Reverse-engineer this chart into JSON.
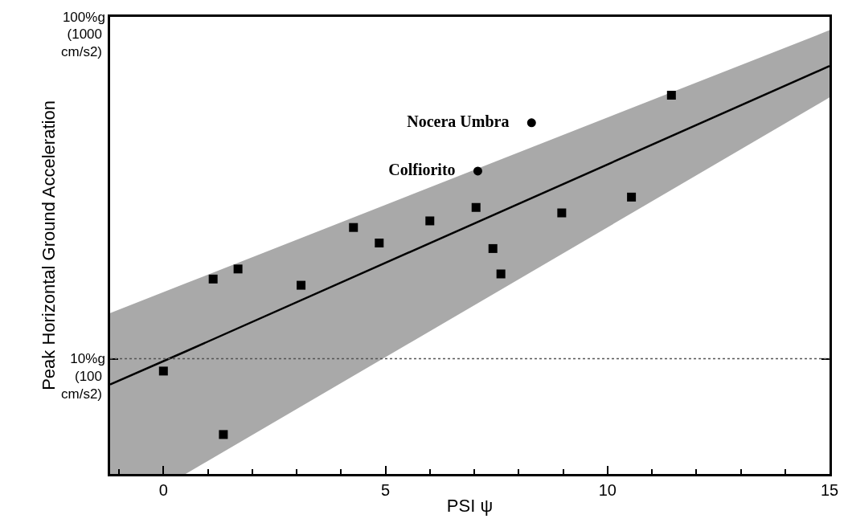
{
  "chart_data": {
    "type": "scatter",
    "xlabel": "PSI ψ",
    "ylabel": "Peak Horizontal Ground Acceleration",
    "log": "y",
    "xlim": [
      -1.2,
      15
    ],
    "xticks": [
      0,
      5,
      10,
      15
    ],
    "ylim": [
      4.6,
      100
    ],
    "yticks": [
      {
        "value": 100,
        "label": "100%g"
      },
      {
        "value": 10,
        "label": "10%g"
      }
    ],
    "annotations": [
      "(1000\ncm/s2)",
      "(100\ncm/s2)"
    ],
    "series": [
      {
        "type": "line",
        "color": "#000000",
        "marker": "none",
        "line_style": "solid",
        "x": [
          -1.2,
          0.5,
          15
        ],
        "values": [
          8.4,
          10.5,
          71.8
        ],
        "lower": [
          4.6,
          4.6,
          58.1
        ],
        "upper": [
          13.6,
          16.6,
          91.4
        ]
      },
      {
        "color": "#000000",
        "marker": "square",
        "x": [
          0,
          1.12,
          1.68,
          1.35,
          3.1,
          4.28,
          4.86,
          6.0,
          7.04,
          7.42,
          7.6,
          8.97,
          10.54,
          11.44
        ],
        "values": [
          9.2,
          17.1,
          18.3,
          6.0,
          16.4,
          24.2,
          21.8,
          25.3,
          27.7,
          21.0,
          17.7,
          26.7,
          29.7,
          59.0
        ]
      },
      {
        "name": "Nocera Umbra",
        "color": "#000000",
        "marker": "circle",
        "x": [
          8.29
        ],
        "values": [
          49.0
        ]
      },
      {
        "name": "Colfiorito",
        "color": "#000000",
        "marker": "circle",
        "x": [
          7.08
        ],
        "values": [
          35.4
        ]
      }
    ],
    "ref_lines": [
      {
        "axis": "y",
        "value": 10,
        "line_style": "dotted",
        "color": "#555555"
      }
    ]
  }
}
